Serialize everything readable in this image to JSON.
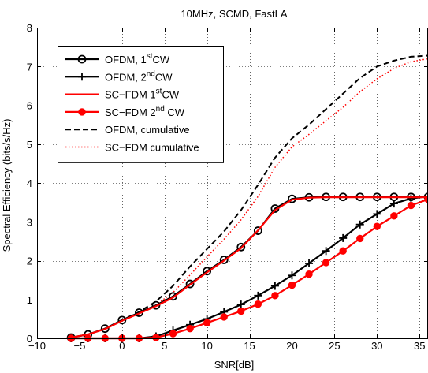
{
  "chart_data": {
    "type": "line",
    "title": "10MHz, SCMD, FastLA",
    "xlabel": "SNR[dB]",
    "ylabel": "Spectral Efficiency (bits/s/Hz)",
    "xlim": [
      -10,
      36
    ],
    "ylim": [
      0,
      8
    ],
    "xticks": [
      -10,
      -5,
      0,
      5,
      10,
      15,
      20,
      25,
      30,
      35
    ],
    "yticks": [
      0,
      1,
      2,
      3,
      4,
      5,
      6,
      7,
      8
    ],
    "grid": true,
    "legend_position": "top-left",
    "series": [
      {
        "name": "OFDM, 1stCW",
        "legend": {
          "base": "OFDM, 1",
          "sup": "st",
          "tail": "CW"
        },
        "color": "#000000",
        "style": "solid",
        "marker": "circle",
        "x": [
          -6,
          -4,
          -2,
          0,
          2,
          4,
          6,
          8,
          10,
          12,
          14,
          16,
          18,
          20,
          22,
          24,
          26,
          28,
          30,
          32,
          34,
          36
        ],
        "y": [
          0.02,
          0.1,
          0.25,
          0.47,
          0.66,
          0.85,
          1.08,
          1.4,
          1.73,
          2.02,
          2.35,
          2.77,
          3.34,
          3.59,
          3.63,
          3.64,
          3.64,
          3.64,
          3.64,
          3.64,
          3.64,
          3.64
        ]
      },
      {
        "name": "OFDM, 2ndCW",
        "legend": {
          "base": "OFDM, 2",
          "sup": "nd",
          "tail": "CW"
        },
        "color": "#000000",
        "style": "solid",
        "marker": "plus",
        "x": [
          -6,
          -4,
          -2,
          0,
          2,
          4,
          6,
          8,
          10,
          12,
          14,
          16,
          18,
          20,
          22,
          24,
          26,
          28,
          30,
          32,
          34,
          36
        ],
        "y": [
          0,
          0,
          0,
          0,
          0,
          0.05,
          0.2,
          0.35,
          0.5,
          0.68,
          0.87,
          1.1,
          1.35,
          1.62,
          1.93,
          2.25,
          2.58,
          2.93,
          3.2,
          3.47,
          3.6,
          3.65
        ]
      },
      {
        "name": "SC−FDM 1stCW",
        "legend": {
          "base": "SC−FDM 1",
          "sup": "st",
          "tail": "CW"
        },
        "color": "#ff0000",
        "style": "solid",
        "marker": "none",
        "x": [
          -6,
          -4,
          -2,
          0,
          2,
          4,
          6,
          8,
          10,
          12,
          14,
          16,
          18,
          20,
          22,
          24,
          26,
          28,
          30,
          32,
          34,
          36
        ],
        "y": [
          0.02,
          0.1,
          0.24,
          0.45,
          0.64,
          0.83,
          1.05,
          1.38,
          1.7,
          2.0,
          2.32,
          2.78,
          3.3,
          3.57,
          3.62,
          3.63,
          3.63,
          3.63,
          3.63,
          3.63,
          3.63,
          3.63
        ]
      },
      {
        "name": "SC−FDM 2nd CW",
        "legend": {
          "base": "SC−FDM 2",
          "sup": "nd",
          "tail": " CW"
        },
        "color": "#ff0000",
        "style": "solid",
        "marker": "dot",
        "x": [
          -6,
          -4,
          -2,
          0,
          2,
          4,
          6,
          8,
          10,
          12,
          14,
          16,
          18,
          20,
          22,
          24,
          26,
          28,
          30,
          32,
          34,
          36
        ],
        "y": [
          0,
          0,
          0,
          0,
          0,
          0.02,
          0.12,
          0.25,
          0.4,
          0.55,
          0.7,
          0.88,
          1.1,
          1.37,
          1.65,
          1.95,
          2.25,
          2.57,
          2.88,
          3.15,
          3.42,
          3.58
        ]
      },
      {
        "name": "OFDM, cumulative",
        "legend": {
          "base": "OFDM, cumulative",
          "sup": "",
          "tail": ""
        },
        "color": "#000000",
        "style": "dashed",
        "marker": "none",
        "x": [
          -6,
          -4,
          -2,
          0,
          2,
          4,
          6,
          8,
          10,
          12,
          14,
          16,
          18,
          20,
          22,
          24,
          26,
          28,
          30,
          32,
          34,
          36
        ],
        "y": [
          0.02,
          0.1,
          0.25,
          0.47,
          0.68,
          0.95,
          1.35,
          1.85,
          2.3,
          2.75,
          3.3,
          3.95,
          4.65,
          5.15,
          5.5,
          5.9,
          6.3,
          6.7,
          7.0,
          7.15,
          7.25,
          7.28
        ]
      },
      {
        "name": "SC−FDM cumulative",
        "legend": {
          "base": "SC−FDM cumulative",
          "sup": "",
          "tail": ""
        },
        "color": "#ff0000",
        "style": "dotted",
        "marker": "none",
        "x": [
          -6,
          -4,
          -2,
          0,
          2,
          4,
          6,
          8,
          10,
          12,
          14,
          16,
          18,
          20,
          22,
          24,
          26,
          28,
          30,
          32,
          34,
          36
        ],
        "y": [
          0.02,
          0.1,
          0.24,
          0.45,
          0.64,
          0.86,
          1.18,
          1.63,
          2.1,
          2.55,
          3.05,
          3.65,
          4.4,
          4.93,
          5.25,
          5.6,
          5.95,
          6.35,
          6.68,
          6.95,
          7.12,
          7.2
        ]
      }
    ]
  }
}
